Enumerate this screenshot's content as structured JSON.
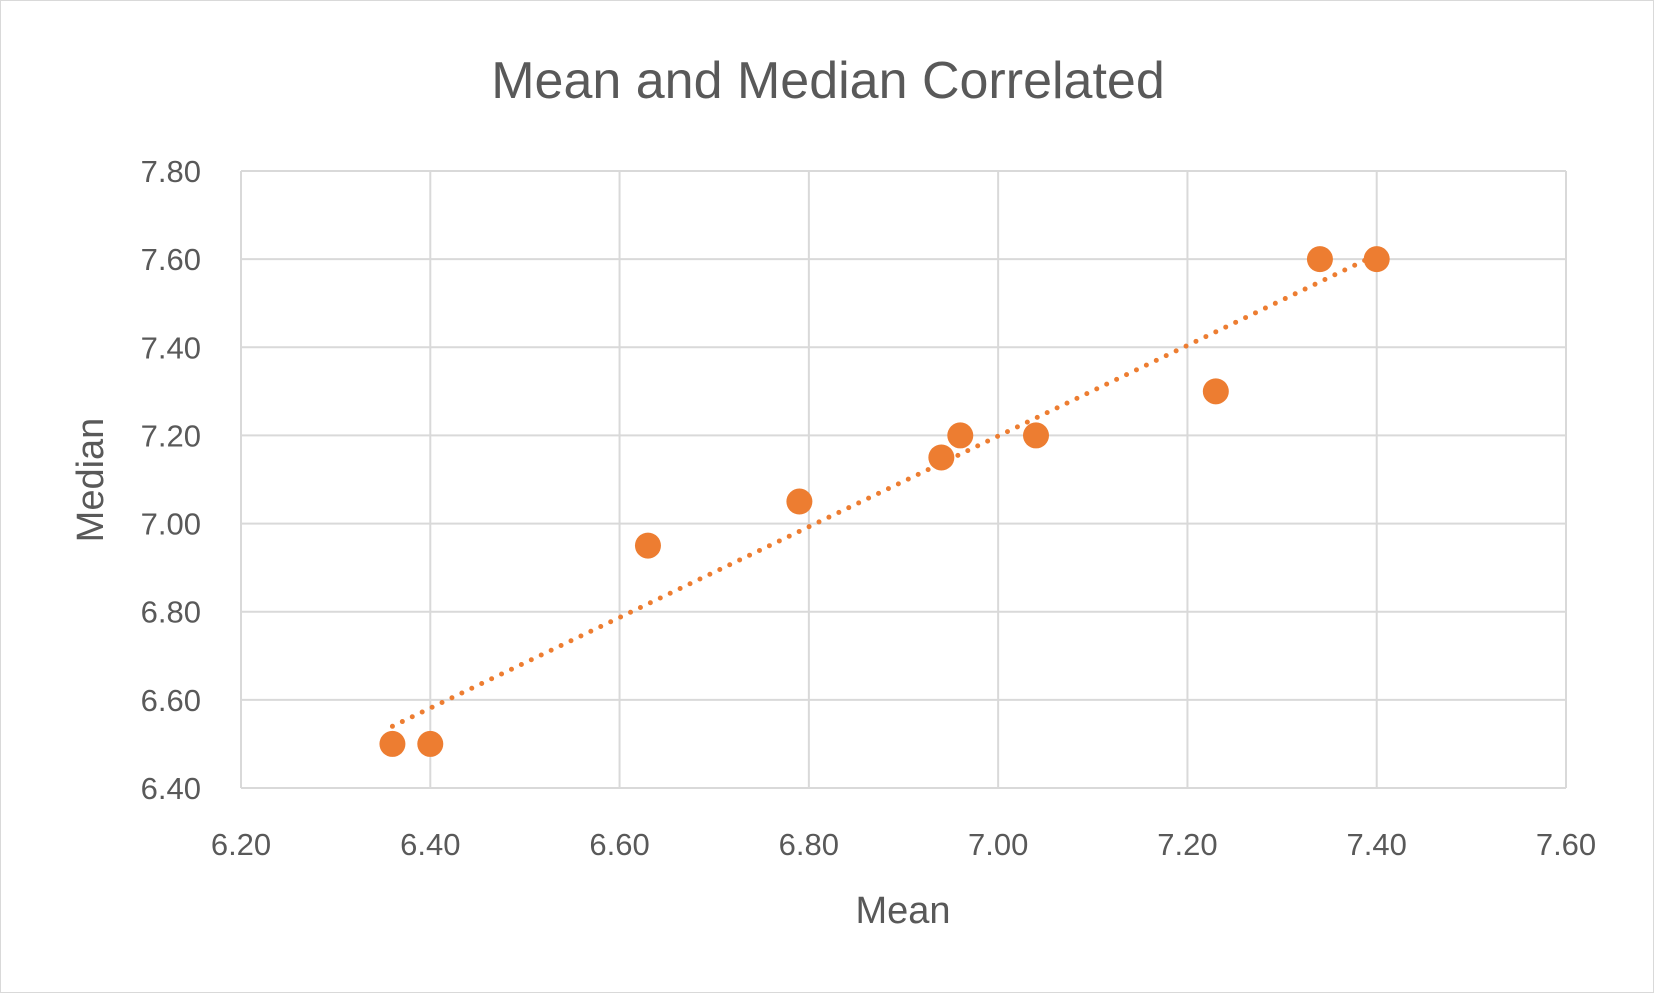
{
  "chart_data": {
    "type": "scatter",
    "title": "Mean and Median Correlated",
    "xlabel": "Mean",
    "ylabel": "Median",
    "xlim": [
      6.2,
      7.6
    ],
    "ylim": [
      6.4,
      7.8
    ],
    "x_ticks": [
      "6.20",
      "6.40",
      "6.60",
      "6.80",
      "7.00",
      "7.20",
      "7.40",
      "7.60"
    ],
    "y_ticks": [
      "6.40",
      "6.60",
      "6.80",
      "7.00",
      "7.20",
      "7.40",
      "7.60",
      "7.80"
    ],
    "grid": true,
    "legend": "none",
    "series": [
      {
        "points": [
          {
            "x": 6.36,
            "y": 6.5
          },
          {
            "x": 6.4,
            "y": 6.5
          },
          {
            "x": 6.63,
            "y": 6.95
          },
          {
            "x": 6.79,
            "y": 7.05
          },
          {
            "x": 6.94,
            "y": 7.15
          },
          {
            "x": 6.96,
            "y": 7.2
          },
          {
            "x": 7.04,
            "y": 7.2
          },
          {
            "x": 7.23,
            "y": 7.3
          },
          {
            "x": 7.34,
            "y": 7.6
          },
          {
            "x": 7.4,
            "y": 7.6
          }
        ],
        "color": "#ED7D31"
      }
    ],
    "trendline": {
      "type": "linear",
      "style": "dotted",
      "color": "#ED7D31",
      "from": {
        "x": 6.36,
        "y": 6.54
      },
      "to": {
        "x": 7.4,
        "y": 7.61
      }
    }
  }
}
